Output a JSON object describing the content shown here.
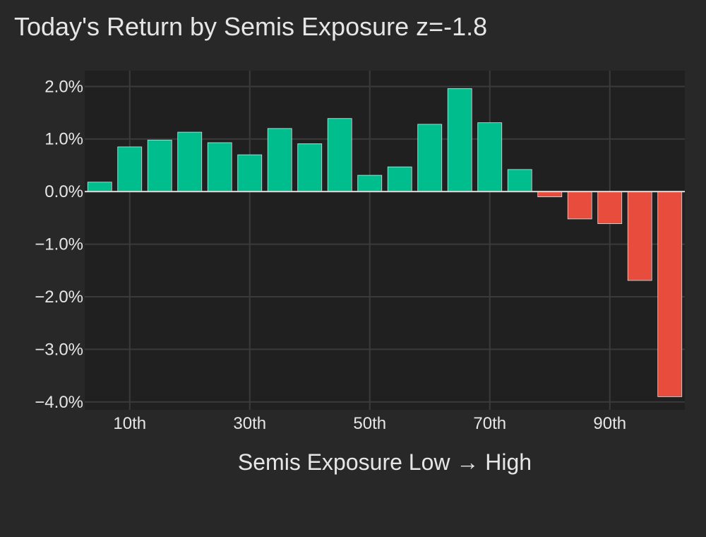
{
  "chart_data": {
    "type": "bar",
    "title": "Today's Return by Semis Exposure z=-1.8",
    "xlabel": "Semis Exposure  Low → High",
    "ylabel": "",
    "x_tick_labels": [
      {
        "label": "10th",
        "position": 10
      },
      {
        "label": "30th",
        "position": 30
      },
      {
        "label": "50th",
        "position": 50
      },
      {
        "label": "70th",
        "position": 70
      },
      {
        "label": "90th",
        "position": 90
      }
    ],
    "y_tick_labels": [
      {
        "label": "2.0%",
        "value": 2.0
      },
      {
        "label": "1.0%",
        "value": 1.0
      },
      {
        "label": "0.0%",
        "value": 0.0
      },
      {
        "label": "−1.0%",
        "value": -1.0
      },
      {
        "label": "−2.0%",
        "value": -2.0
      },
      {
        "label": "−3.0%",
        "value": -3.0
      },
      {
        "label": "−4.0%",
        "value": -4.0
      }
    ],
    "xlim": [
      2.5,
      102.5
    ],
    "ylim": [
      -4.15,
      2.3
    ],
    "x": [
      5,
      10,
      15,
      20,
      25,
      30,
      35,
      40,
      45,
      50,
      55,
      60,
      65,
      70,
      75,
      80,
      85,
      90,
      95,
      100
    ],
    "values": [
      0.18,
      0.85,
      0.98,
      1.13,
      0.93,
      0.7,
      1.2,
      0.91,
      1.39,
      0.31,
      0.47,
      1.28,
      1.96,
      1.31,
      0.42,
      -0.1,
      -0.52,
      -0.61,
      -1.69,
      -3.9
    ],
    "grid": true,
    "colors": {
      "positive": "#00bd8e",
      "negative": "#e74c3c",
      "background": "#282828",
      "plot_background": "#202020",
      "grid": "#3a3a3a",
      "zero_line": "#d8d8d8",
      "bar_outline": "#e0e0e0"
    }
  }
}
